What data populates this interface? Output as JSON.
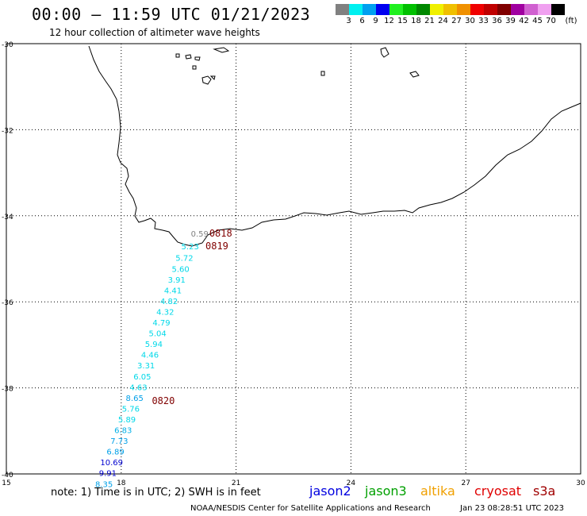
{
  "header": {
    "title": "00:00 – 11:59 UTC 01/21/2023",
    "subtitle": "12 hour collection of altimeter wave heights"
  },
  "legend": {
    "unit": "(ft)",
    "swatches": [
      {
        "label": "3",
        "color": "#808080"
      },
      {
        "label": "6",
        "color": "#00f0f0"
      },
      {
        "label": "9",
        "color": "#00a0f0"
      },
      {
        "label": "12",
        "color": "#0000f0"
      },
      {
        "label": "15",
        "color": "#20f020"
      },
      {
        "label": "18",
        "color": "#00c000"
      },
      {
        "label": "21",
        "color": "#008800"
      },
      {
        "label": "24",
        "color": "#f0f000"
      },
      {
        "label": "27",
        "color": "#f0c000"
      },
      {
        "label": "30",
        "color": "#f09000"
      },
      {
        "label": "33",
        "color": "#f00000"
      },
      {
        "label": "36",
        "color": "#c00000"
      },
      {
        "label": "39",
        "color": "#800000"
      },
      {
        "label": "42",
        "color": "#a000a0"
      },
      {
        "label": "45",
        "color": "#d060d0"
      },
      {
        "label": "70",
        "color": "#f0a0f0"
      },
      {
        "label": "",
        "color": "#000000"
      }
    ]
  },
  "map": {
    "lat_ticks": [
      "-30",
      "-32",
      "-34",
      "-36",
      "-38",
      "-40"
    ],
    "lon_ticks": [
      "15",
      "18",
      "21",
      "24",
      "27",
      "30"
    ],
    "lon_range": [
      15,
      30
    ],
    "lat_range": [
      -40,
      -30
    ],
    "track_color_default": "#00c8d8",
    "wave_heights": [
      {
        "value": "0.59",
        "lon": 20.05,
        "lat": -34.48,
        "color": "#808080"
      },
      {
        "value": "5.23",
        "lon": 19.8,
        "lat": -34.78,
        "color": "#00d8e8"
      },
      {
        "value": "5.72",
        "lon": 19.65,
        "lat": -35.05,
        "color": "#00d8e8"
      },
      {
        "value": "5.60",
        "lon": 19.55,
        "lat": -35.3,
        "color": "#00d8e8"
      },
      {
        "value": "3.91",
        "lon": 19.45,
        "lat": -35.55,
        "color": "#00d8e8"
      },
      {
        "value": "4.41",
        "lon": 19.35,
        "lat": -35.8,
        "color": "#00d8e8"
      },
      {
        "value": "4.82",
        "lon": 19.25,
        "lat": -36.05,
        "color": "#00d8e8"
      },
      {
        "value": "4.32",
        "lon": 19.15,
        "lat": -36.3,
        "color": "#00d8e8"
      },
      {
        "value": "4.79",
        "lon": 19.05,
        "lat": -36.55,
        "color": "#00d8e8"
      },
      {
        "value": "5.04",
        "lon": 18.95,
        "lat": -36.8,
        "color": "#00d8e8"
      },
      {
        "value": "5.94",
        "lon": 18.85,
        "lat": -37.05,
        "color": "#00d8e8"
      },
      {
        "value": "4.46",
        "lon": 18.75,
        "lat": -37.3,
        "color": "#00d8e8"
      },
      {
        "value": "3.31",
        "lon": 18.65,
        "lat": -37.55,
        "color": "#00d8e8"
      },
      {
        "value": "6.05",
        "lon": 18.55,
        "lat": -37.8,
        "color": "#00d8e8"
      },
      {
        "value": "4.63",
        "lon": 18.45,
        "lat": -38.05,
        "color": "#00d8e8"
      },
      {
        "value": "8.65",
        "lon": 18.35,
        "lat": -38.3,
        "color": "#00a0e8"
      },
      {
        "value": "5.76",
        "lon": 18.25,
        "lat": -38.55,
        "color": "#00d8e8"
      },
      {
        "value": "5.89",
        "lon": 18.15,
        "lat": -38.8,
        "color": "#00d8e8"
      },
      {
        "value": "6.83",
        "lon": 18.05,
        "lat": -39.05,
        "color": "#00b0e8"
      },
      {
        "value": "7.73",
        "lon": 17.95,
        "lat": -39.3,
        "color": "#00a0e8"
      },
      {
        "value": "6.89",
        "lon": 17.85,
        "lat": -39.55,
        "color": "#00a0e8"
      },
      {
        "value": "10.69",
        "lon": 17.75,
        "lat": -39.8,
        "color": "#0000d0"
      },
      {
        "value": "9.91",
        "lon": 17.65,
        "lat": -40.05,
        "color": "#0000d0"
      },
      {
        "value": "8.35",
        "lon": 17.55,
        "lat": -40.3,
        "color": "#00a0e8"
      }
    ],
    "time_labels": [
      {
        "value": "0818",
        "lon": 20.6,
        "lat": -34.48,
        "color": "#800000"
      },
      {
        "value": "0819",
        "lon": 20.5,
        "lat": -34.78,
        "color": "#800000"
      },
      {
        "value": "0820",
        "lon": 19.1,
        "lat": -38.38,
        "color": "#800000"
      }
    ]
  },
  "footer": {
    "note": "note:  1) Time is in UTC;  2) SWH is in feet",
    "satellites": [
      {
        "name": "jason2",
        "color": "#0000e0"
      },
      {
        "name": "jason3",
        "color": "#00a000"
      },
      {
        "name": "altika",
        "color": "#f0a000"
      },
      {
        "name": "cryosat",
        "color": "#e00000"
      },
      {
        "name": "s3a",
        "color": "#a00000"
      }
    ],
    "credit": "NOAA/NESDIS Center for Satellite Applications and Research",
    "timestamp": "Jan 23 08:28:51 UTC 2023"
  }
}
